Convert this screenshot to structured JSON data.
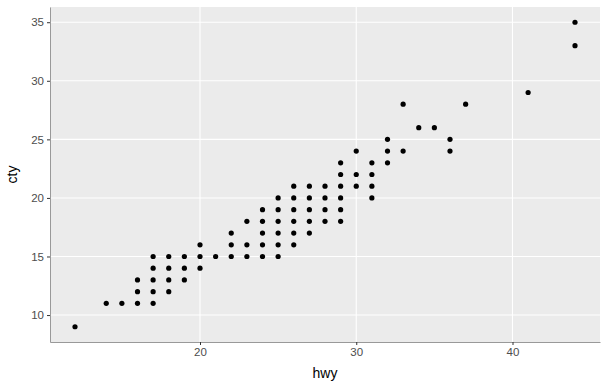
{
  "chart_data": {
    "type": "scatter",
    "x_label": "hwy",
    "y_label": "cty",
    "x": [
      12,
      14,
      15,
      16,
      16,
      16,
      17,
      17,
      17,
      17,
      17,
      18,
      18,
      18,
      18,
      19,
      19,
      19,
      20,
      20,
      20,
      21,
      22,
      22,
      22,
      23,
      23,
      23,
      24,
      24,
      24,
      24,
      24,
      25,
      25,
      25,
      25,
      25,
      25,
      26,
      26,
      26,
      26,
      26,
      26,
      27,
      27,
      27,
      27,
      27,
      28,
      28,
      28,
      28,
      29,
      29,
      29,
      29,
      29,
      29,
      30,
      30,
      30,
      31,
      31,
      31,
      31,
      32,
      32,
      32,
      33,
      33,
      34,
      35,
      36,
      36,
      37,
      41,
      44,
      44
    ],
    "values": [
      9,
      11,
      11,
      11,
      12,
      13,
      11,
      12,
      13,
      14,
      15,
      12,
      13,
      14,
      15,
      13,
      14,
      15,
      14,
      15,
      16,
      15,
      15,
      16,
      17,
      15,
      16,
      18,
      15,
      16,
      17,
      18,
      19,
      15,
      16,
      17,
      18,
      19,
      20,
      16,
      17,
      18,
      19,
      20,
      21,
      17,
      18,
      19,
      20,
      21,
      18,
      19,
      20,
      21,
      18,
      19,
      20,
      21,
      22,
      23,
      21,
      22,
      24,
      20,
      21,
      22,
      23,
      23,
      24,
      25,
      24,
      28,
      26,
      26,
      24,
      25,
      28,
      29,
      33,
      35
    ],
    "color": "#000000",
    "marker": "circle",
    "xlim": [
      10.4,
      45.6
    ],
    "xticks": [
      20,
      30,
      40
    ],
    "ylim": [
      7.7,
      36.3
    ],
    "yticks": [
      10,
      15,
      20,
      25,
      30,
      35
    ],
    "grid": true
  }
}
